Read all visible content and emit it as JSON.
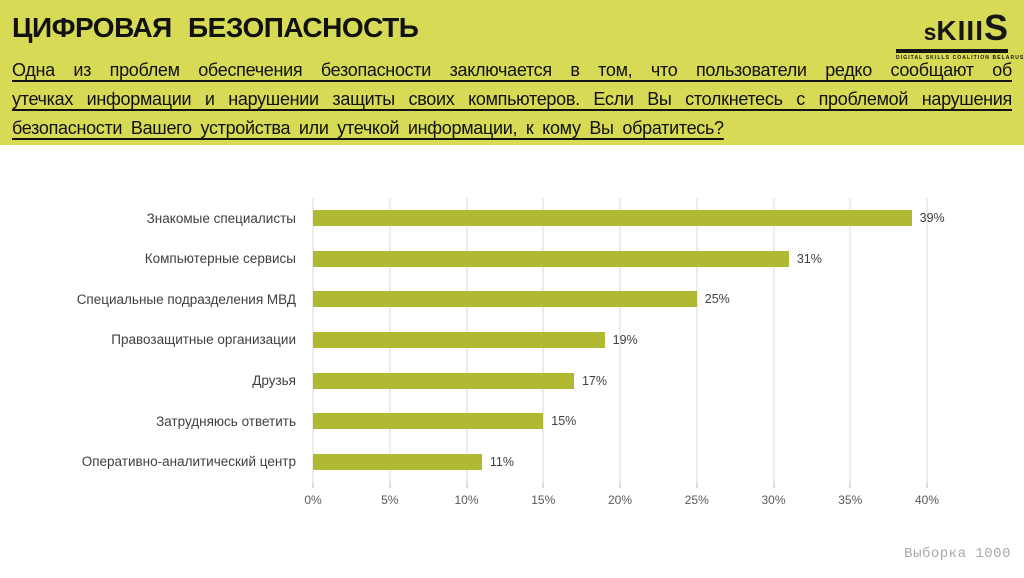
{
  "slide": {
    "title": "ЦИФРОВАЯ БЕЗОПАСНОСТЬ",
    "intro_lines": [
      "Одна из проблем обеспечения безопасности заключается в том, что пользователи редко сообщают об",
      "утечках информации и нарушении защиты своих компьютеров. Если Вы столкнетесь с проблемой нарушения",
      "безопасности Вашего устройства или утечкой информации, к кому Вы обратитесь?"
    ],
    "footer_note": "Выборка 1000"
  },
  "logo": {
    "part_s": "s",
    "part_kiii": "KIII",
    "part_big_s": "S",
    "tagline": "DIGITAL SKILLS COALITION BELARUS"
  },
  "colors": {
    "header_bg": "#d6da54",
    "bar": "#b1b831",
    "gridline": "#d9d9d9",
    "label_text": "#404040",
    "axis_text": "#595959",
    "footer_text": "#a8a8a8"
  },
  "chart_data": {
    "type": "bar",
    "orientation": "horizontal",
    "title": "",
    "xlabel": "",
    "ylabel": "",
    "categories": [
      "Знакомые специалисты",
      "Компьютерные сервисы",
      "Специальные подразделения МВД",
      "Правозащитные организации",
      "Друзья",
      "Затрудняюсь ответить",
      "Оперативно-аналитический центр"
    ],
    "values": [
      39,
      31,
      25,
      19,
      17,
      15,
      11
    ],
    "value_labels": [
      "39%",
      "31%",
      "25%",
      "19%",
      "17%",
      "15%",
      "11%"
    ],
    "x_ticks": [
      "0%",
      "5%",
      "10%",
      "15%",
      "20%",
      "25%",
      "30%",
      "35%",
      "40%"
    ],
    "xlim": [
      0,
      40
    ],
    "grid": true,
    "legend": false
  }
}
